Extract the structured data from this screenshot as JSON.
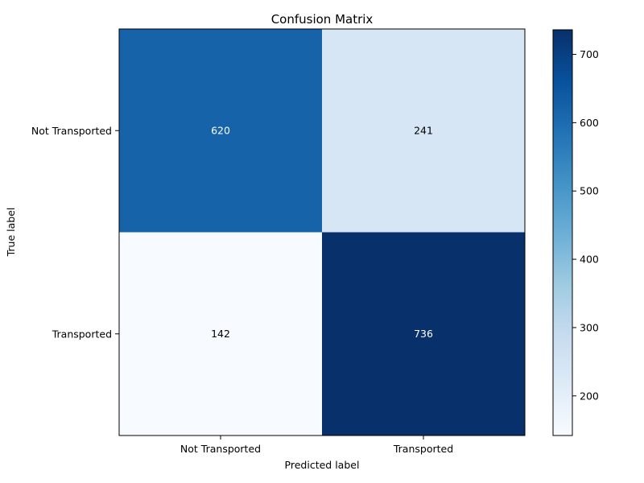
{
  "chart_data": {
    "type": "heatmap",
    "title": "Confusion Matrix",
    "xlabel": "Predicted label",
    "ylabel": "True label",
    "x_categories": [
      "Not Transported",
      "Transported"
    ],
    "y_categories": [
      "Not Transported",
      "Transported"
    ],
    "matrix": [
      [
        620,
        241
      ],
      [
        142,
        736
      ]
    ],
    "colormap": "Blues",
    "colorbar": {
      "range": [
        142,
        736
      ],
      "ticks": [
        200,
        300,
        400,
        500,
        600,
        700
      ],
      "tick_labels": [
        "200",
        "300",
        "400",
        "500",
        "600",
        "700"
      ]
    },
    "colors": {
      "low": "#f7fbff",
      "high": "#08306b",
      "text_light": "#ffffff",
      "text_dark": "#000000"
    }
  }
}
